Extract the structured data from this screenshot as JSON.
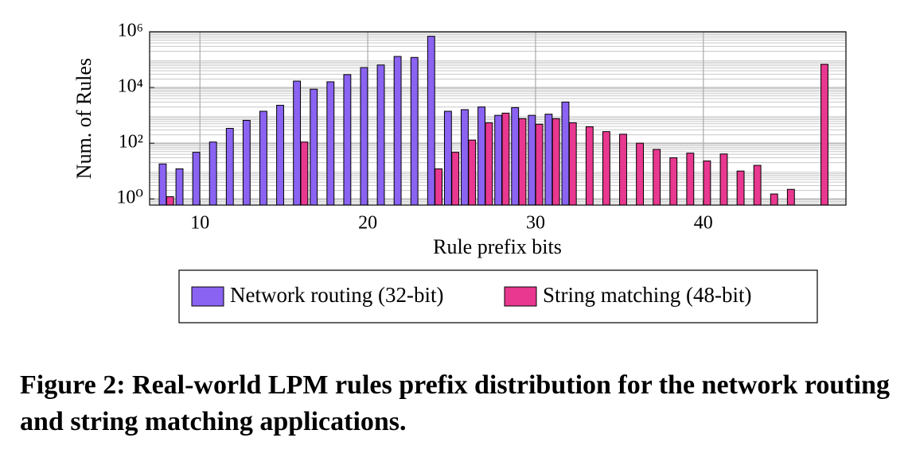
{
  "chart_data": {
    "type": "bar",
    "x": [
      8,
      9,
      10,
      11,
      12,
      13,
      14,
      15,
      16,
      17,
      18,
      19,
      20,
      21,
      22,
      23,
      24,
      25,
      26,
      27,
      28,
      29,
      30,
      31,
      32,
      33,
      34,
      35,
      36,
      37,
      38,
      39,
      40,
      41,
      42,
      43,
      44,
      45,
      46,
      47
    ],
    "series": [
      {
        "name": "Network routing (32-bit)",
        "color": "#8a63f2",
        "values": [
          18,
          12,
          47,
          110,
          340,
          660,
          1400,
          2300,
          17000,
          8700,
          16000,
          29000,
          52000,
          64000,
          130000,
          120000,
          690000,
          1400,
          1600,
          2000,
          1000,
          1900,
          1000,
          1100,
          3000,
          null,
          null,
          null,
          null,
          null,
          null,
          null,
          null,
          null,
          null,
          null,
          null,
          null,
          null,
          null
        ]
      },
      {
        "name": "String matching (48-bit)",
        "color": "#e8388f",
        "values": [
          1.2,
          null,
          null,
          null,
          null,
          null,
          null,
          null,
          110,
          null,
          null,
          null,
          null,
          null,
          null,
          null,
          12,
          47,
          130,
          540,
          1200,
          760,
          480,
          760,
          540,
          390,
          260,
          210,
          100,
          60,
          30,
          44,
          23,
          41,
          10,
          16,
          1.5,
          2.2,
          null,
          68000
        ]
      }
    ],
    "x_label": "Rule prefix bits",
    "y_label": "Num. of Rules",
    "log_y": true,
    "grid": true,
    "xlim": [
      7,
      48.5
    ],
    "xticks": [
      10,
      20,
      30,
      40
    ],
    "ylim": [
      0.6,
      1000000
    ],
    "yticks": [
      {
        "value": 1,
        "label": "10⁰"
      },
      {
        "value": 100,
        "label": "10²"
      },
      {
        "value": 10000,
        "label": "10⁴"
      },
      {
        "value": 1000000,
        "label": "10⁶"
      }
    ],
    "legend": "bottom"
  },
  "caption": "Figure 2: Real-world LPM rules prefix distribution for the network routing and string matching applications."
}
